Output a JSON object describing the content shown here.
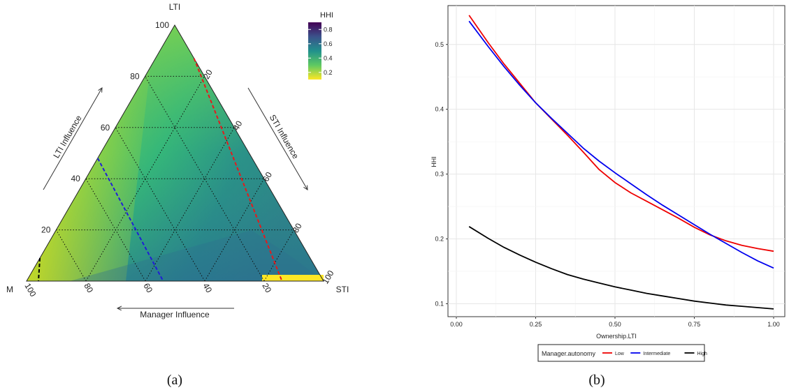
{
  "panel_a": {
    "caption": "(a)",
    "vertex_labels": {
      "top": "LTI",
      "left": "M",
      "right": "STI"
    },
    "influence_labels": {
      "left": "LTI Influence",
      "right": "STI Influence",
      "bottom": "Manager Influence"
    },
    "legend": {
      "title": "HHI",
      "ticks": [
        "0.8",
        "0.6",
        "0.4",
        "0.2"
      ]
    },
    "colors": {
      "gradient_top": "#440154",
      "gradient_mid": "#21918c",
      "gradient_bottom": "#fde725",
      "red_dash": "#e41a1c",
      "blue_dash": "#1f1fd6",
      "black_dash": "#000000"
    }
  },
  "panel_b": {
    "caption": "(b)",
    "legend": {
      "title": "Manager.autonomy"
    }
  },
  "chart_data": [
    {
      "type": "heatmap",
      "subtype": "ternary",
      "axes": {
        "top": "LTI",
        "left": "M",
        "right": "STI"
      },
      "axis_ticks": {
        "LTI": [
          "20",
          "40",
          "60",
          "80",
          "100"
        ],
        "STI": [
          "20",
          "40",
          "60",
          "80",
          "100"
        ],
        "M": [
          "20",
          "40",
          "60",
          "80",
          "100"
        ]
      },
      "colorbar": {
        "title": "HHI",
        "ticks": [
          0.2,
          0.4,
          0.6,
          0.8
        ],
        "palette": "viridis"
      },
      "reference_lines": [
        {
          "color": "red",
          "style": "dashed",
          "from": {
            "LTI": 87,
            "STI": 13,
            "M": 0
          },
          "to": {
            "LTI": 0,
            "STI": 86,
            "M": 14
          }
        },
        {
          "color": "blue",
          "style": "dashed",
          "from": {
            "LTI": 48,
            "STI": 0,
            "M": 52
          },
          "to": {
            "LTI": 0,
            "STI": 46,
            "M": 54
          }
        },
        {
          "color": "black",
          "style": "dashed",
          "from": {
            "LTI": 9,
            "STI": 0,
            "M": 91
          },
          "to": {
            "LTI": 0,
            "STI": 4,
            "M": 96
          }
        }
      ],
      "grid": true
    },
    {
      "type": "line",
      "xlabel": "Ownership.LTI",
      "ylabel": "HHI",
      "xlim": [
        0,
        1
      ],
      "ylim": [
        0.08,
        0.56
      ],
      "xticks": [
        0,
        0.25,
        0.5,
        0.75,
        1
      ],
      "xtick_labels": [
        "0.00",
        "0.25",
        "0.50",
        "0.75",
        "1.00"
      ],
      "yticks": [
        0.1,
        0.2,
        0.3,
        0.4,
        0.5
      ],
      "ytick_labels": [
        "0.1",
        "0.2",
        "0.3",
        "0.4",
        "0.5"
      ],
      "grid": true,
      "legend_position": "bottom",
      "series": [
        {
          "name": "Low",
          "color": "#ee0000",
          "x": [
            0.04,
            0.1,
            0.15,
            0.2,
            0.25,
            0.3,
            0.35,
            0.4,
            0.45,
            0.5,
            0.55,
            0.6,
            0.65,
            0.7,
            0.75,
            0.8,
            0.85,
            0.9,
            0.95,
            1.0
          ],
          "y": [
            0.545,
            0.503,
            0.47,
            0.44,
            0.41,
            0.385,
            0.36,
            0.334,
            0.307,
            0.287,
            0.271,
            0.258,
            0.245,
            0.232,
            0.218,
            0.206,
            0.197,
            0.19,
            0.185,
            0.181
          ]
        },
        {
          "name": "Intermediate",
          "color": "#0000ee",
          "x": [
            0.04,
            0.1,
            0.15,
            0.2,
            0.25,
            0.3,
            0.35,
            0.4,
            0.45,
            0.5,
            0.55,
            0.6,
            0.65,
            0.7,
            0.75,
            0.8,
            0.85,
            0.9,
            0.95,
            1.0
          ],
          "y": [
            0.536,
            0.497,
            0.466,
            0.437,
            0.41,
            0.386,
            0.363,
            0.34,
            0.32,
            0.302,
            0.285,
            0.268,
            0.252,
            0.237,
            0.222,
            0.207,
            0.193,
            0.179,
            0.166,
            0.155
          ]
        },
        {
          "name": "High",
          "color": "#000000",
          "x": [
            0.04,
            0.1,
            0.15,
            0.2,
            0.25,
            0.3,
            0.35,
            0.4,
            0.45,
            0.5,
            0.55,
            0.6,
            0.65,
            0.7,
            0.75,
            0.8,
            0.85,
            0.9,
            0.95,
            1.0
          ],
          "y": [
            0.219,
            0.201,
            0.187,
            0.175,
            0.164,
            0.154,
            0.145,
            0.138,
            0.132,
            0.126,
            0.121,
            0.116,
            0.112,
            0.108,
            0.104,
            0.101,
            0.098,
            0.096,
            0.094,
            0.092
          ]
        }
      ]
    }
  ]
}
